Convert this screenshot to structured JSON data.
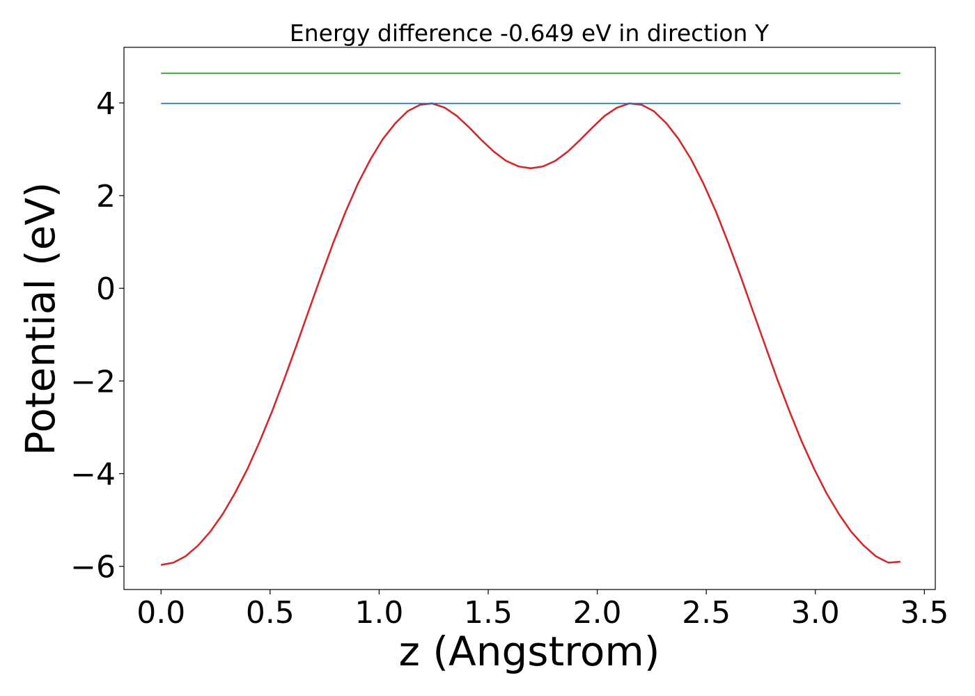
{
  "chart_data": {
    "type": "line",
    "title": "Energy difference -0.649 eV in direction Y",
    "xlabel": "z (Angstrom)",
    "ylabel": "Potential (eV)",
    "xlim": [
      -0.17,
      3.55
    ],
    "ylim": [
      -6.5,
      5.2
    ],
    "xticks": [
      0.0,
      0.5,
      1.0,
      1.5,
      2.0,
      2.5,
      3.0,
      3.5
    ],
    "xtick_labels": [
      "0.0",
      "0.5",
      "1.0",
      "1.5",
      "2.0",
      "2.5",
      "3.0",
      "3.5"
    ],
    "yticks": [
      4,
      2,
      0,
      -2,
      -4,
      -6
    ],
    "ytick_labels": [
      "4",
      "2",
      "0",
      "−2",
      "−4",
      "−6"
    ],
    "grid": false,
    "series": [
      {
        "color": "#d62728",
        "x": [
          0.0,
          0.057,
          0.113,
          0.17,
          0.226,
          0.283,
          0.339,
          0.396,
          0.452,
          0.509,
          0.565,
          0.622,
          0.678,
          0.735,
          0.791,
          0.848,
          0.904,
          0.961,
          1.017,
          1.074,
          1.13,
          1.187,
          1.243,
          1.3,
          1.356,
          1.413,
          1.469,
          1.526,
          1.582,
          1.639,
          1.695,
          1.752,
          1.808,
          1.865,
          1.921,
          1.978,
          2.034,
          2.091,
          2.147,
          2.204,
          2.26,
          2.317,
          2.373,
          2.43,
          2.486,
          2.543,
          2.599,
          2.656,
          2.712,
          2.769,
          2.825,
          2.882,
          2.938,
          2.995,
          3.051,
          3.108,
          3.164,
          3.221,
          3.277,
          3.334,
          3.39
        ],
        "values": [
          -5.97,
          -5.92,
          -5.78,
          -5.55,
          -5.25,
          -4.87,
          -4.42,
          -3.9,
          -3.31,
          -2.66,
          -1.96,
          -1.22,
          -0.47,
          0.28,
          1.0,
          1.67,
          2.27,
          2.79,
          3.22,
          3.56,
          3.82,
          3.96,
          3.99,
          3.9,
          3.72,
          3.47,
          3.2,
          2.95,
          2.75,
          2.63,
          2.59,
          2.63,
          2.75,
          2.95,
          3.2,
          3.47,
          3.72,
          3.9,
          3.99,
          3.96,
          3.82,
          3.56,
          3.22,
          2.79,
          2.27,
          1.67,
          1.0,
          0.28,
          -0.47,
          -1.22,
          -1.96,
          -2.66,
          -3.31,
          -3.9,
          -4.42,
          -4.87,
          -5.25,
          -5.55,
          -5.78,
          -5.92,
          -5.9
        ]
      },
      {
        "color": "#1f77b4",
        "x": [
          0.0,
          3.39
        ],
        "values": [
          3.99,
          3.99
        ]
      },
      {
        "color": "#2ca02c",
        "x": [
          0.0,
          3.39
        ],
        "values": [
          4.64,
          4.64
        ]
      }
    ]
  }
}
